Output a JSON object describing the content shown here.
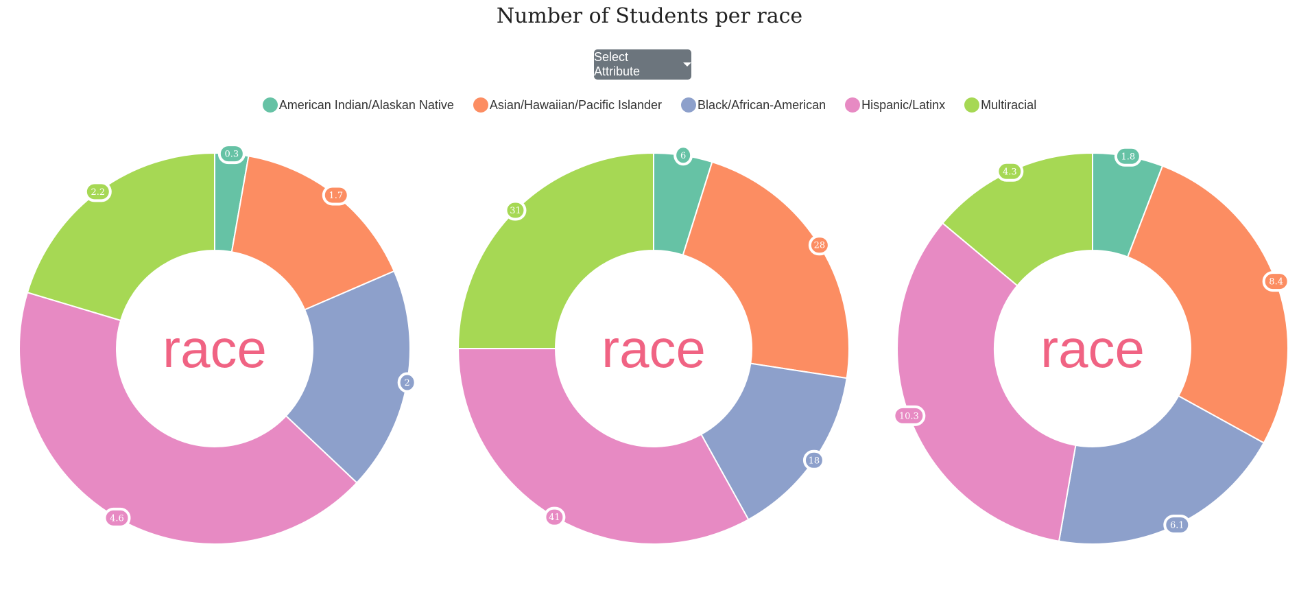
{
  "title": "Number of Students per race",
  "dropdown": {
    "label": "Select Attribute"
  },
  "legend": [
    {
      "label": "American Indian/Alaskan Native",
      "color": "#66c2a5"
    },
    {
      "label": "Asian/Hawaiian/Pacific Islander",
      "color": "#fc8d62"
    },
    {
      "label": "Black/African-American",
      "color": "#8da0cb"
    },
    {
      "label": "Hispanic/Latinx",
      "color": "#e78ac3"
    },
    {
      "label": "Multiracial",
      "color": "#a6d854"
    }
  ],
  "chart_data": [
    {
      "type": "pie",
      "center_label": "race",
      "categories": [
        "American Indian/Alaskan Native",
        "Asian/Hawaiian/Pacific Islander",
        "Black/African-American",
        "Hispanic/Latinx",
        "Multiracial"
      ],
      "values": [
        0.3,
        1.7,
        2,
        4.6,
        2.2
      ],
      "value_labels": [
        "0.3",
        "1.7",
        "2",
        "4.6",
        "2.2"
      ]
    },
    {
      "type": "pie",
      "center_label": "race",
      "categories": [
        "American Indian/Alaskan Native",
        "Asian/Hawaiian/Pacific Islander",
        "Black/African-American",
        "Hispanic/Latinx",
        "Multiracial"
      ],
      "values": [
        6,
        28,
        18,
        41,
        31
      ],
      "value_labels": [
        "6",
        "28",
        "18",
        "41",
        "31"
      ]
    },
    {
      "type": "pie",
      "center_label": "race",
      "categories": [
        "American Indian/Alaskan Native",
        "Asian/Hawaiian/Pacific Islander",
        "Black/African-American",
        "Hispanic/Latinx",
        "Multiracial"
      ],
      "values": [
        1.8,
        8.4,
        6.1,
        10.3,
        4.3
      ],
      "value_labels": [
        "1.8",
        "8.4",
        "6.1",
        "10.3",
        "4.3"
      ]
    }
  ]
}
